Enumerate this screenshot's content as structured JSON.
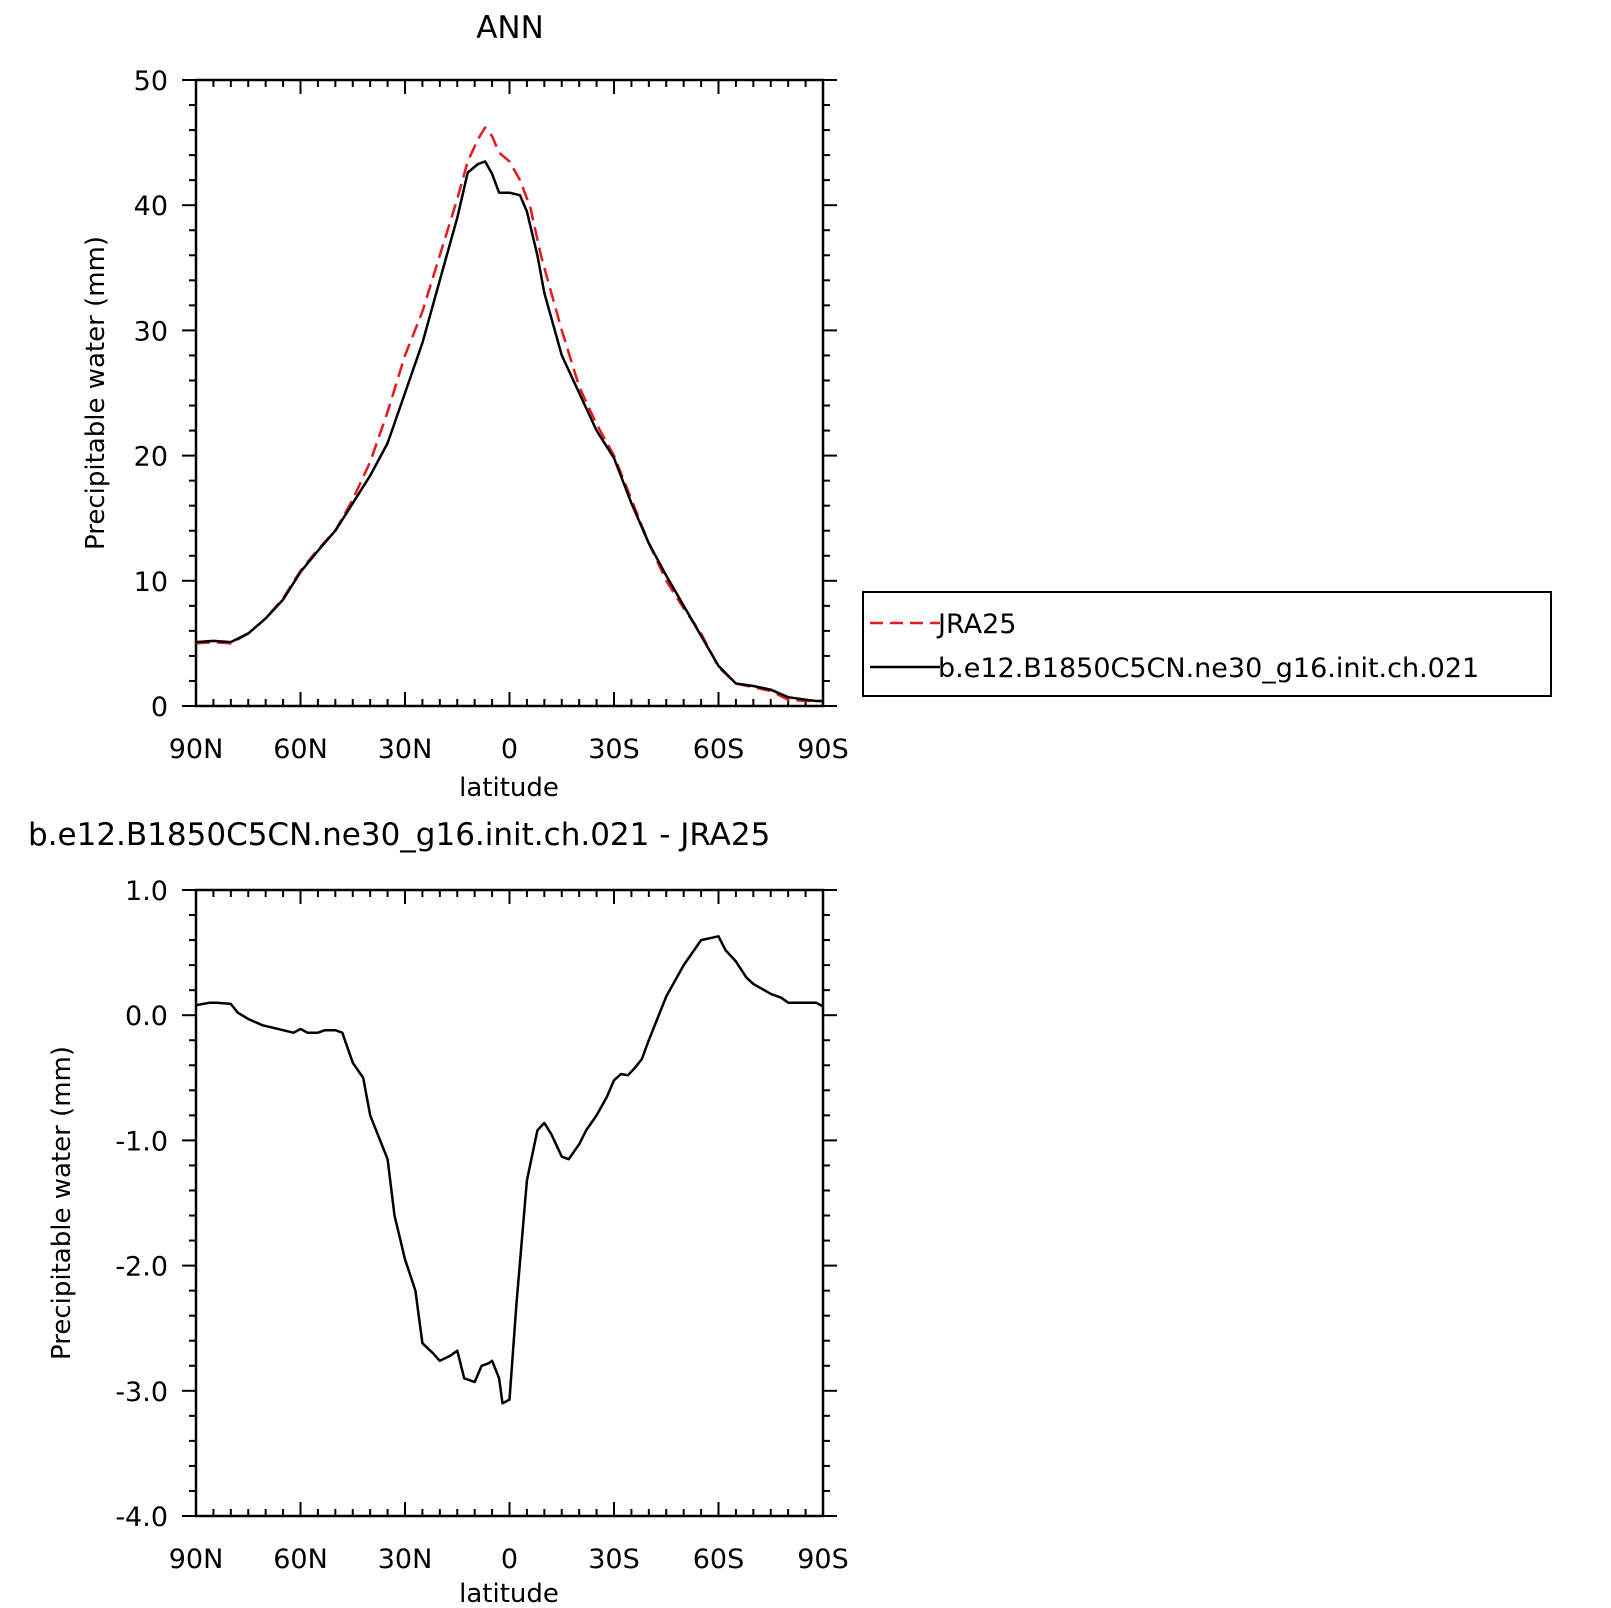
{
  "chart_data": [
    {
      "type": "line",
      "title": "ANN",
      "xlabel": "latitude",
      "ylabel": "Precipitable water (mm)",
      "xlim": [
        90,
        -90
      ],
      "ylim": [
        0,
        50
      ],
      "x_ticks": [
        90,
        60,
        30,
        0,
        -30,
        -60,
        -90
      ],
      "x_tick_labels": [
        "90N",
        "60N",
        "30N",
        "0",
        "30S",
        "60S",
        "90S"
      ],
      "y_ticks": [
        0,
        10,
        20,
        30,
        40,
        50
      ],
      "y_tick_labels": [
        "0",
        "10",
        "20",
        "30",
        "40",
        "50"
      ],
      "legend": {
        "position": "right",
        "entries": [
          "JRA25",
          "b.e12.B1850C5CN.ne30_g16.init.ch.021"
        ]
      },
      "series": [
        {
          "name": "JRA25",
          "color": "#e41a1c",
          "dash": "dashed",
          "x": [
            90,
            85,
            80,
            75,
            70,
            65,
            60,
            55,
            50,
            45,
            40,
            35,
            30,
            25,
            20,
            15,
            12,
            9,
            7,
            5,
            3,
            0,
            -3,
            -6,
            -9,
            -12,
            -15,
            -20,
            -25,
            -30,
            -35,
            -40,
            -45,
            -50,
            -55,
            -60,
            -65,
            -70,
            -75,
            -80,
            -85,
            -88,
            -90
          ],
          "values": [
            5.0,
            5.1,
            5.0,
            5.8,
            7.0,
            8.6,
            10.8,
            12.5,
            14.0,
            16.5,
            19.5,
            23.5,
            28.0,
            31.5,
            36.0,
            40.5,
            43.5,
            45.3,
            46.2,
            45.5,
            44.2,
            43.5,
            42.0,
            39.8,
            36.0,
            33.0,
            30.0,
            25.5,
            22.5,
            20.0,
            16.5,
            13.0,
            10.0,
            7.8,
            5.8,
            3.1,
            1.8,
            1.5,
            1.2,
            0.5,
            0.4,
            0.4,
            0.4
          ]
        },
        {
          "name": "b.e12.B1850C5CN.ne30_g16.init.ch.021",
          "color": "#000000",
          "dash": "solid",
          "x": [
            90,
            85,
            80,
            75,
            70,
            65,
            60,
            55,
            50,
            45,
            40,
            35,
            30,
            25,
            20,
            15,
            12,
            9,
            7,
            5,
            3,
            0,
            -3,
            -5,
            -8,
            -10,
            -15,
            -20,
            -25,
            -30,
            -35,
            -40,
            -45,
            -50,
            -55,
            -60,
            -65,
            -70,
            -75,
            -80,
            -85,
            -88,
            -90
          ],
          "values": [
            5.1,
            5.2,
            5.1,
            5.8,
            7.0,
            8.5,
            10.7,
            12.4,
            14.0,
            16.2,
            18.4,
            21.0,
            25.0,
            29.0,
            34.0,
            39.0,
            42.6,
            43.3,
            43.5,
            42.5,
            41.0,
            41.0,
            40.8,
            39.5,
            36.0,
            33.0,
            28.0,
            25.0,
            22.0,
            19.8,
            16.2,
            13.0,
            10.4,
            8.0,
            5.6,
            3.2,
            1.8,
            1.6,
            1.3,
            0.7,
            0.5,
            0.4,
            0.4
          ]
        }
      ]
    },
    {
      "type": "line",
      "title": "b.e12.B1850C5CN.ne30_g16.init.ch.021 - JRA25",
      "xlabel": "latitude",
      "ylabel": "Precipitable water (mm)",
      "xlim": [
        90,
        -90
      ],
      "ylim": [
        -4.0,
        1.0
      ],
      "x_ticks": [
        90,
        60,
        30,
        0,
        -30,
        -60,
        -90
      ],
      "x_tick_labels": [
        "90N",
        "60N",
        "30N",
        "0",
        "30S",
        "60S",
        "90S"
      ],
      "y_ticks": [
        -4.0,
        -3.0,
        -2.0,
        -1.0,
        0.0,
        1.0
      ],
      "y_tick_labels": [
        "-4.0",
        "-3.0",
        "-2.0",
        "-1.0",
        "0.0",
        "1.0"
      ],
      "series": [
        {
          "color": "#000000",
          "dash": "solid",
          "x": [
            90,
            86,
            84,
            80,
            78,
            75,
            71,
            68,
            65,
            62,
            60,
            58,
            55,
            53,
            50,
            48,
            45,
            42,
            40,
            35,
            33,
            30,
            27,
            25,
            22,
            20,
            17,
            15,
            13,
            10,
            8,
            6,
            5,
            3,
            2,
            0,
            -2,
            -5,
            -8,
            -10,
            -12,
            -15,
            -17,
            -20,
            -22,
            -25,
            -28,
            -30,
            -32,
            -34,
            -36,
            -38,
            -40,
            -45,
            -50,
            -55,
            -60,
            -62,
            -65,
            -68,
            -70,
            -75,
            -78,
            -80,
            -85,
            -88,
            -90
          ],
          "values": [
            0.08,
            0.1,
            0.1,
            0.09,
            0.02,
            -0.03,
            -0.08,
            -0.1,
            -0.12,
            -0.14,
            -0.11,
            -0.14,
            -0.14,
            -0.12,
            -0.12,
            -0.14,
            -0.38,
            -0.5,
            -0.8,
            -1.15,
            -1.6,
            -1.95,
            -2.2,
            -2.62,
            -2.7,
            -2.76,
            -2.72,
            -2.68,
            -2.9,
            -2.93,
            -2.8,
            -2.78,
            -2.76,
            -2.9,
            -3.1,
            -3.07,
            -2.3,
            -1.32,
            -0.92,
            -0.86,
            -0.95,
            -1.13,
            -1.15,
            -1.03,
            -0.92,
            -0.8,
            -0.65,
            -0.52,
            -0.47,
            -0.48,
            -0.42,
            -0.35,
            -0.2,
            0.15,
            0.4,
            0.6,
            0.63,
            0.52,
            0.43,
            0.3,
            0.25,
            0.17,
            0.14,
            0.1,
            0.1,
            0.1,
            0.07
          ]
        }
      ]
    }
  ]
}
